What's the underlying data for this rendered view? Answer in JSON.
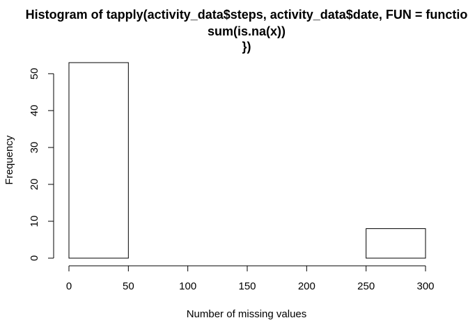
{
  "chart_data": {
    "type": "bar",
    "title_lines": [
      "Histogram of tapply(activity_data$steps, activity_data$date, FUN = functio",
      "sum(is.na(x))",
      "})"
    ],
    "xlabel": "Number of missing values",
    "ylabel": "Frequency",
    "bins": [
      {
        "from": 0,
        "to": 50,
        "count": 53
      },
      {
        "from": 50,
        "to": 100,
        "count": 0
      },
      {
        "from": 100,
        "to": 150,
        "count": 0
      },
      {
        "from": 150,
        "to": 200,
        "count": 0
      },
      {
        "from": 200,
        "to": 250,
        "count": 0
      },
      {
        "from": 250,
        "to": 300,
        "count": 8
      }
    ],
    "xlim": [
      0,
      300
    ],
    "ylim": [
      0,
      53
    ],
    "xticks": [
      "0",
      "50",
      "100",
      "150",
      "200",
      "250",
      "300"
    ],
    "yticks": [
      "0",
      "10",
      "20",
      "30",
      "40",
      "50"
    ],
    "grid": false,
    "colors": {
      "bar_fill": "#ffffff",
      "bar_stroke": "#000000",
      "background": "#ffffff"
    }
  }
}
